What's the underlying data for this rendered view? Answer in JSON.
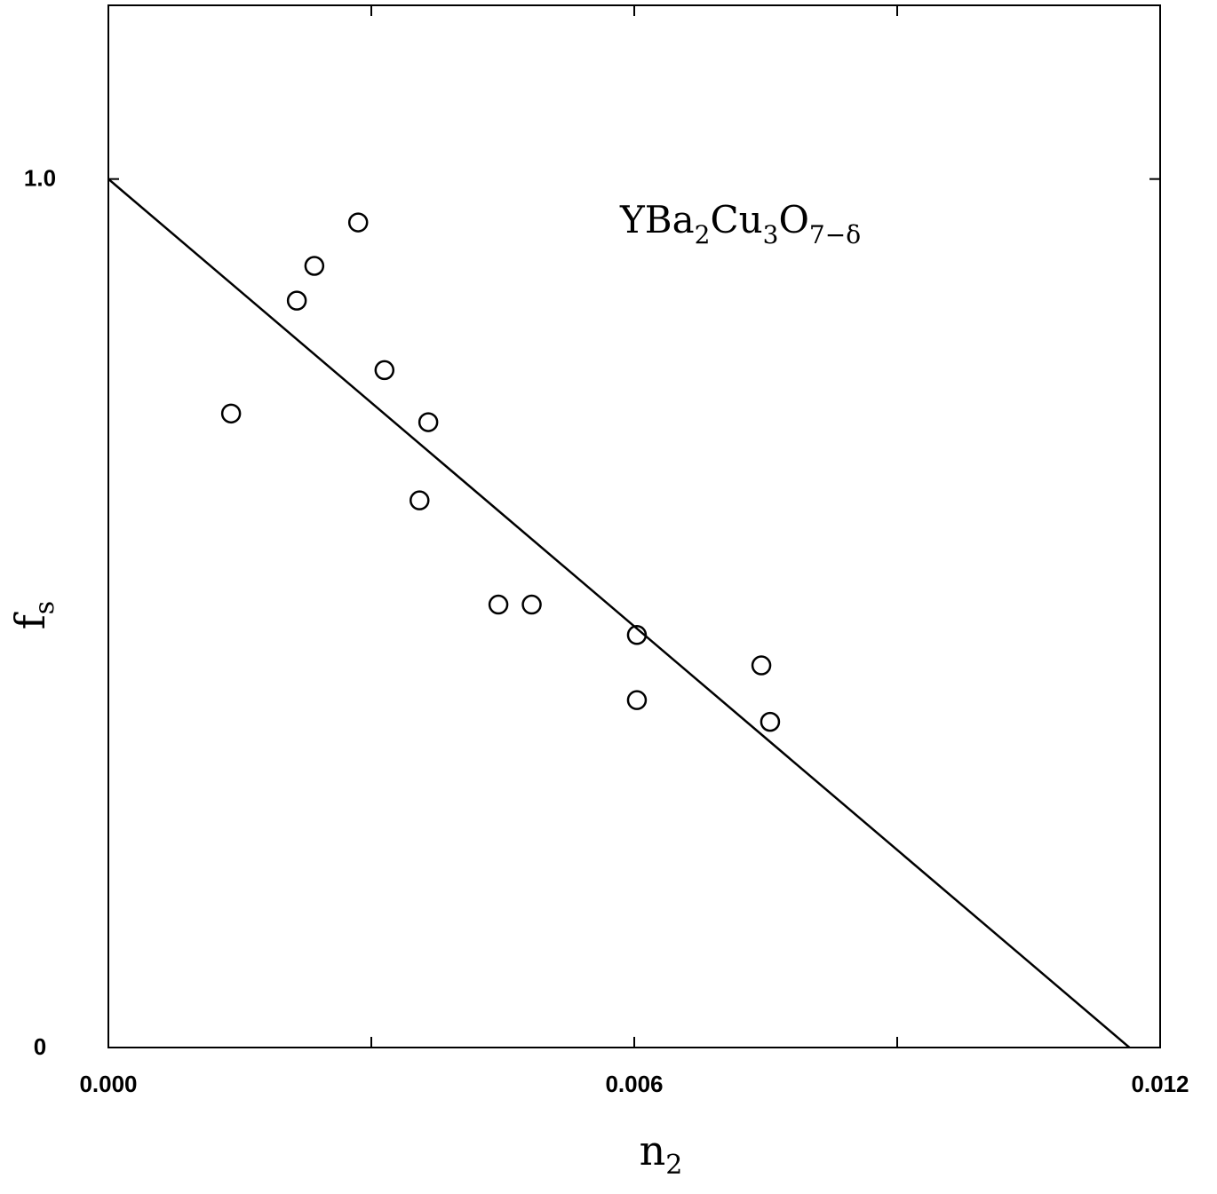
{
  "chart_data": {
    "type": "scatter",
    "xlabel": "n",
    "xlabel_subscript": "2",
    "ylabel": "f",
    "ylabel_subscript": "s",
    "annotation": {
      "parts": [
        "YBa",
        "2",
        "Cu",
        "3",
        "O",
        "7−δ"
      ]
    },
    "xlim": [
      0.0,
      0.012
    ],
    "ylim": [
      0,
      1.2
    ],
    "x_ticks": [
      0.0,
      0.003,
      0.006,
      0.009,
      0.012
    ],
    "x_tick_labels": [
      "0.000",
      "",
      "0.006",
      "",
      "0.012"
    ],
    "y_ticks": [
      0,
      1.0
    ],
    "y_tick_labels": [
      "0",
      "1.0"
    ],
    "grid": false,
    "series": [
      {
        "type": "scatter",
        "marker": "open-circle",
        "points": [
          {
            "x": 0.0014,
            "y": 0.73
          },
          {
            "x": 0.00215,
            "y": 0.86
          },
          {
            "x": 0.00235,
            "y": 0.9
          },
          {
            "x": 0.00285,
            "y": 0.95
          },
          {
            "x": 0.00315,
            "y": 0.78
          },
          {
            "x": 0.00365,
            "y": 0.72
          },
          {
            "x": 0.00355,
            "y": 0.63
          },
          {
            "x": 0.00445,
            "y": 0.51
          },
          {
            "x": 0.00483,
            "y": 0.51
          },
          {
            "x": 0.00603,
            "y": 0.475
          },
          {
            "x": 0.00603,
            "y": 0.4
          },
          {
            "x": 0.00745,
            "y": 0.44
          },
          {
            "x": 0.00755,
            "y": 0.375
          }
        ]
      },
      {
        "type": "line",
        "points": [
          {
            "x": 0.0,
            "y": 1.0
          },
          {
            "x": 0.01165,
            "y": 0.0
          }
        ]
      }
    ]
  }
}
